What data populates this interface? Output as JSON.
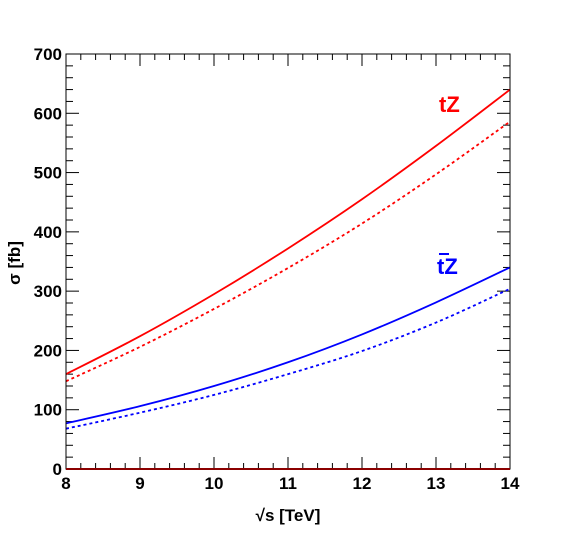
{
  "chart_data": {
    "type": "line",
    "xlabel": "√s [TeV]",
    "ylabel": "σ [fb]",
    "xlim": [
      8,
      14
    ],
    "ylim": [
      0,
      700
    ],
    "x_ticks": [
      "8",
      "9",
      "10",
      "11",
      "12",
      "13",
      "14"
    ],
    "y_ticks": [
      "0",
      "100",
      "200",
      "300",
      "400",
      "500",
      "600",
      "700"
    ],
    "grid": false,
    "legend": "none",
    "annotations": [
      {
        "text": "tZ",
        "color": "#ff0000",
        "overline": false
      },
      {
        "text": "tZ",
        "color": "#0000ff",
        "overline": true
      }
    ],
    "x": [
      8,
      9,
      10,
      11,
      12,
      13,
      14
    ],
    "series": [
      {
        "color": "#ff0000",
        "style": "solid",
        "values": [
          160,
          224,
          295,
          372,
          455,
          545,
          640
        ]
      },
      {
        "color": "#ff0000",
        "style": "dashed",
        "values": [
          148,
          206,
          270,
          339,
          414,
          497,
          586
        ]
      },
      {
        "color": "#0000ff",
        "style": "solid",
        "values": [
          77,
          106,
          140,
          180,
          227,
          281,
          340
        ]
      },
      {
        "color": "#0000ff",
        "style": "dashed",
        "values": [
          68,
          95,
          125,
          160,
          199,
          247,
          304
        ]
      }
    ]
  }
}
